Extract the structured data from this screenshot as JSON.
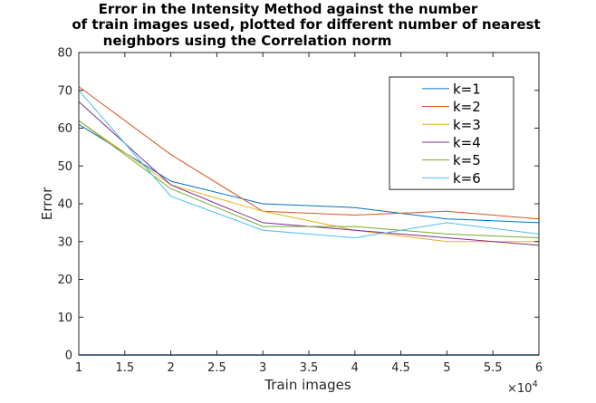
{
  "chart_data": {
    "type": "line",
    "title": [
      "Error in the Intensity Method against the number",
      "of train images used, plotted for different number of nearest",
      "neighbors using the Correlation norm"
    ],
    "xlabel": "Train images",
    "ylabel": "Error",
    "x_exponent_label": "×10",
    "x_exponent_power": "4",
    "xlim": [
      1,
      6
    ],
    "ylim": [
      0,
      80
    ],
    "xticks": [
      1,
      1.5,
      2,
      2.5,
      3,
      3.5,
      4,
      4.5,
      5,
      5.5,
      6
    ],
    "xtick_labels": [
      "1",
      "1.5",
      "2",
      "2.5",
      "3",
      "3.5",
      "4",
      "4.5",
      "5",
      "5.5",
      "6"
    ],
    "yticks": [
      0,
      10,
      20,
      30,
      40,
      50,
      60,
      70,
      80
    ],
    "ytick_labels": [
      "0",
      "10",
      "20",
      "30",
      "40",
      "50",
      "60",
      "70",
      "80"
    ],
    "grid": false,
    "legend_position": "top-right",
    "x": [
      1,
      2,
      3,
      4,
      5,
      6
    ],
    "series": [
      {
        "name": "k=1",
        "color": "#0072BD",
        "values": [
          61,
          46,
          40,
          39,
          36,
          35
        ]
      },
      {
        "name": "k=2",
        "color": "#D95319",
        "values": [
          71,
          53,
          38,
          37,
          38,
          36
        ]
      },
      {
        "name": "k=3",
        "color": "#EDB120",
        "values": [
          62,
          45,
          38,
          33,
          30,
          30
        ]
      },
      {
        "name": "k=4",
        "color": "#7E2F8E",
        "values": [
          67,
          45,
          35,
          33,
          31,
          29
        ]
      },
      {
        "name": "k=5",
        "color": "#77AC30",
        "values": [
          62,
          44,
          34,
          34,
          32,
          31
        ]
      },
      {
        "name": "k=6",
        "color": "#4DBEEE",
        "values": [
          70,
          42,
          33,
          31,
          35,
          32
        ]
      }
    ],
    "baseline_color": "#0072BD"
  }
}
